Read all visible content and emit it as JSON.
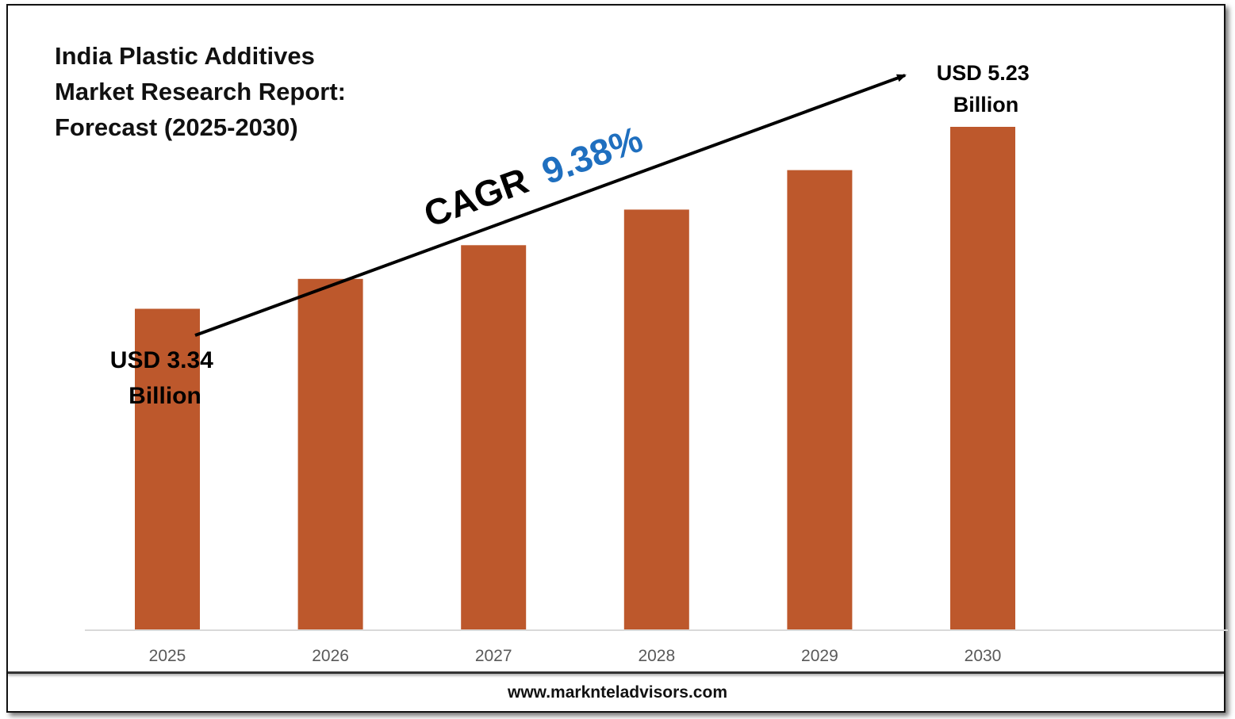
{
  "title_lines": [
    "India Plastic Additives",
    "Market Research Report:",
    "Forecast (2025-2030)"
  ],
  "cagr": {
    "label": "CAGR",
    "value": "9.38%",
    "color": "#1f6fbf"
  },
  "start_label": [
    "USD 3.34",
    "Billion"
  ],
  "end_label": [
    "USD 5.23",
    "Billion"
  ],
  "footer": "www.marknteladvisors.com",
  "colors": {
    "bar": "#bd582c",
    "axis": "#d9d9d9",
    "tick_text": "#595959"
  },
  "chart_data": {
    "type": "bar",
    "title": "India Plastic Additives Market Research Report: Forecast (2025-2030)",
    "categories": [
      "2025",
      "2026",
      "2027",
      "2028",
      "2029",
      "2030"
    ],
    "values": [
      3.34,
      3.65,
      4.0,
      4.37,
      4.78,
      5.23
    ],
    "unit": "USD Billion",
    "ylim": [
      0,
      5.23
    ],
    "grid": false,
    "legend": "none"
  }
}
